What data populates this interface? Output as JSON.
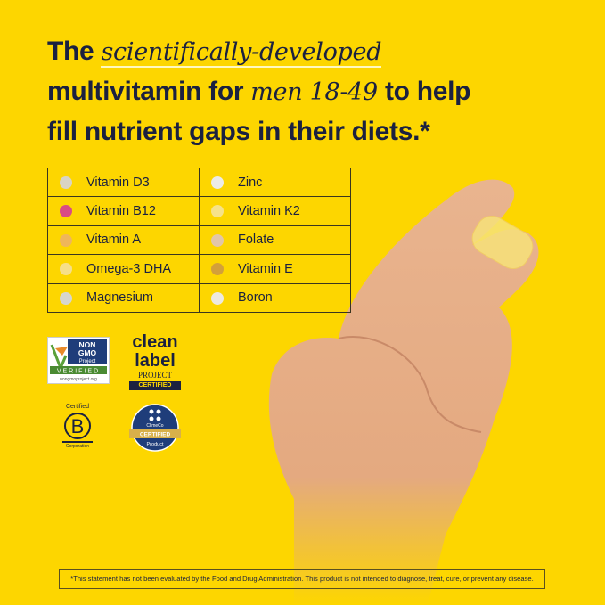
{
  "headline": {
    "line1_prefix": "The ",
    "line1_italic": "scientifically-developed",
    "line2_prefix": "multivitamin for ",
    "line2_italic": "men 18-49",
    "line2_suffix": " to help",
    "line3": "fill nutrient gaps in their diets.*"
  },
  "nutrients": [
    [
      {
        "name": "Vitamin D3",
        "color": "#d9d4c4"
      },
      {
        "name": "Zinc",
        "color": "#ecebe6"
      }
    ],
    [
      {
        "name": "Vitamin B12",
        "color": "#d94b86"
      },
      {
        "name": "Vitamin K2",
        "color": "#f6e28a"
      }
    ],
    [
      {
        "name": "Vitamin A",
        "color": "#efb65a"
      },
      {
        "name": "Folate",
        "color": "#e2c6a8"
      }
    ],
    [
      {
        "name": "Omega-3 DHA",
        "color": "#f6df8a"
      },
      {
        "name": "Vitamin E",
        "color": "#d3a03a"
      }
    ],
    [
      {
        "name": "Magnesium",
        "color": "#d6d6d0"
      },
      {
        "name": "Boron",
        "color": "#ede9e0"
      }
    ]
  ],
  "logos": {
    "nongmo": {
      "text": "NON GMO Project VERIFIED nongmoproject.org"
    },
    "cleanlabel": {
      "text": "clean label PROJECT CERTIFIED"
    },
    "bcorp": {
      "text": "Certified B Corporation"
    },
    "climeco": {
      "text": "ClimeCo CERTIFIED Product"
    }
  },
  "footnote": "*This statement has not been evaluated by the Food and Drug Administration. This product is not intended to diagnose, treat, cure, or prevent any disease.",
  "colors": {
    "background": "#fdd600",
    "text": "#1b2140"
  }
}
